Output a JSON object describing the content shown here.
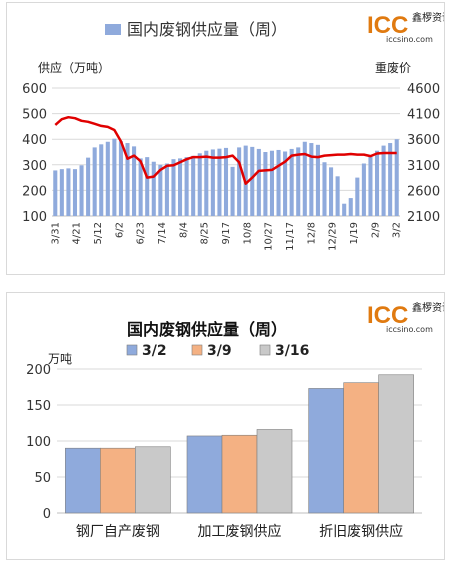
{
  "logo": {
    "mark": "ICC",
    "cn": "鑫椤资讯",
    "url": "iccsino.com"
  },
  "chart_data": [
    {
      "type": "bar",
      "title": "国内废钢供应量（周）",
      "ylabel": "供应（万吨）",
      "y2label": "重废价",
      "ylim": [
        100,
        600
      ],
      "yticks": [
        100,
        200,
        300,
        400,
        500,
        600
      ],
      "y2lim": [
        2100,
        4600
      ],
      "y2ticks": [
        2100,
        2600,
        3100,
        3600,
        4100,
        4600
      ],
      "legend": [
        "国内废钢供应量（周）"
      ],
      "x_tick_labels": [
        "3/31",
        "4/21",
        "5/12",
        "6/2",
        "6/23",
        "7/14",
        "8/4",
        "8/25",
        "9/17",
        "10/8",
        "10/27",
        "11/17",
        "12/8",
        "12/29",
        "1/19",
        "2/9",
        "3/2"
      ],
      "bar_color": "#8faadc",
      "line_color": "#e00000",
      "bar_values": [
        278,
        283,
        286,
        283,
        298,
        328,
        368,
        380,
        390,
        402,
        392,
        385,
        372,
        325,
        330,
        312,
        300,
        305,
        322,
        325,
        330,
        335,
        345,
        355,
        360,
        363,
        366,
        292,
        368,
        375,
        370,
        362,
        350,
        355,
        358,
        352,
        362,
        368,
        390,
        385,
        378,
        310,
        290,
        255,
        148,
        170,
        250,
        305,
        338,
        355,
        375,
        385,
        400
      ],
      "line_values": [
        3880,
        3990,
        4030,
        4010,
        3960,
        3940,
        3900,
        3860,
        3840,
        3780,
        3560,
        3220,
        3280,
        3170,
        2850,
        2870,
        3000,
        3080,
        3090,
        3150,
        3210,
        3250,
        3250,
        3260,
        3240,
        3240,
        3250,
        3280,
        3150,
        2730,
        2850,
        2980,
        2990,
        3000,
        3080,
        3160,
        3280,
        3300,
        3310,
        3260,
        3250,
        3280,
        3290,
        3300,
        3300,
        3310,
        3300,
        3300,
        3270,
        3320,
        3330,
        3330,
        3330
      ]
    },
    {
      "type": "bar",
      "title": "国内废钢供应量（周）",
      "ylabel": "万吨",
      "ylim": [
        0,
        200
      ],
      "yticks": [
        0,
        50,
        100,
        150,
        200
      ],
      "categories": [
        "钢厂自产废钢",
        "加工废钢供应",
        "折旧废钢供应"
      ],
      "series": [
        {
          "name": "3/2",
          "color": "#8faadc",
          "values": [
            90,
            107,
            173
          ]
        },
        {
          "name": "3/9",
          "color": "#f4b183",
          "values": [
            90,
            108,
            181
          ]
        },
        {
          "name": "3/16",
          "color": "#c9c9c9",
          "values": [
            92,
            116,
            192
          ]
        }
      ]
    }
  ]
}
